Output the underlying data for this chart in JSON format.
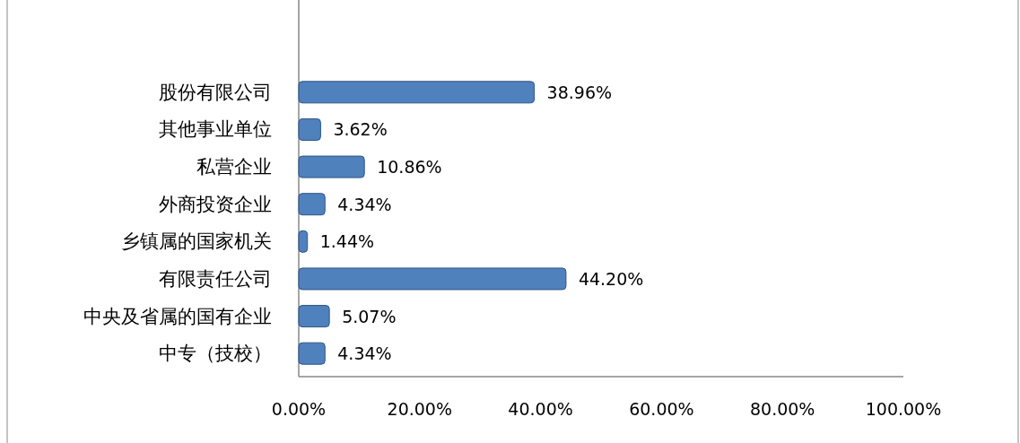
{
  "chart_data": {
    "type": "bar",
    "orientation": "horizontal",
    "categories": [
      "股份有限公司",
      "其他事业单位",
      "私营企业",
      "外商投资企业",
      "乡镇属的国家机关",
      "有限责任公司",
      "中央及省属的国有企业",
      "中专（技校）"
    ],
    "values": [
      38.96,
      3.62,
      10.86,
      4.34,
      1.44,
      44.2,
      5.07,
      4.34
    ],
    "value_labels": [
      "38.96%",
      "3.62%",
      "10.86%",
      "4.34%",
      "1.44%",
      "44.20%",
      "5.07%",
      "4.34%"
    ],
    "color": "#4f81bd",
    "xlim": [
      0,
      100
    ],
    "xticks": [
      {
        "value": 0,
        "label": "0.00%"
      },
      {
        "value": 20,
        "label": "20.00%"
      },
      {
        "value": 40,
        "label": "40.00%"
      },
      {
        "value": 60,
        "label": "60.00%"
      },
      {
        "value": 80,
        "label": "80.00%"
      },
      {
        "value": 100,
        "label": "100.00%"
      }
    ],
    "grid": false
  }
}
